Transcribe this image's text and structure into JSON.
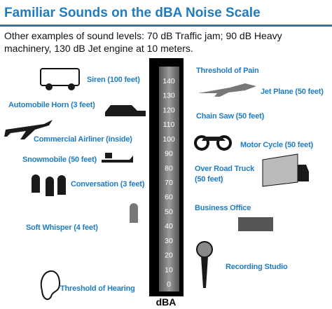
{
  "title": "Familiar Sounds on the dBA Noise Scale",
  "subtitle": [
    "Other examples of sound levels:  70 dB Traffic jam;  90 dB Heavy",
    "machinery,  130 dB Jet engine at 10 meters."
  ],
  "scale": {
    "unit": "dBA",
    "ticks": [
      0,
      10,
      20,
      30,
      40,
      50,
      60,
      70,
      80,
      90,
      100,
      110,
      120,
      130,
      140
    ]
  },
  "left_labels": [
    "Siren (100 feet)",
    "Automobile Horn (3 feet)",
    "Commercial Airliner (inside)",
    "Snowmobile (50 feet)",
    "Conversation (3 feet)",
    "Soft Whisper (4 feet)",
    "Threshold of Hearing"
  ],
  "right_labels": [
    "Threshold of Pain",
    "Jet Plane (50 feet)",
    "Chain Saw (50 feet)",
    "Motor Cycle (50 feet)",
    [
      "Over Road Truck",
      "(50 feet)"
    ],
    "Business Office",
    "Recording Studio"
  ]
}
